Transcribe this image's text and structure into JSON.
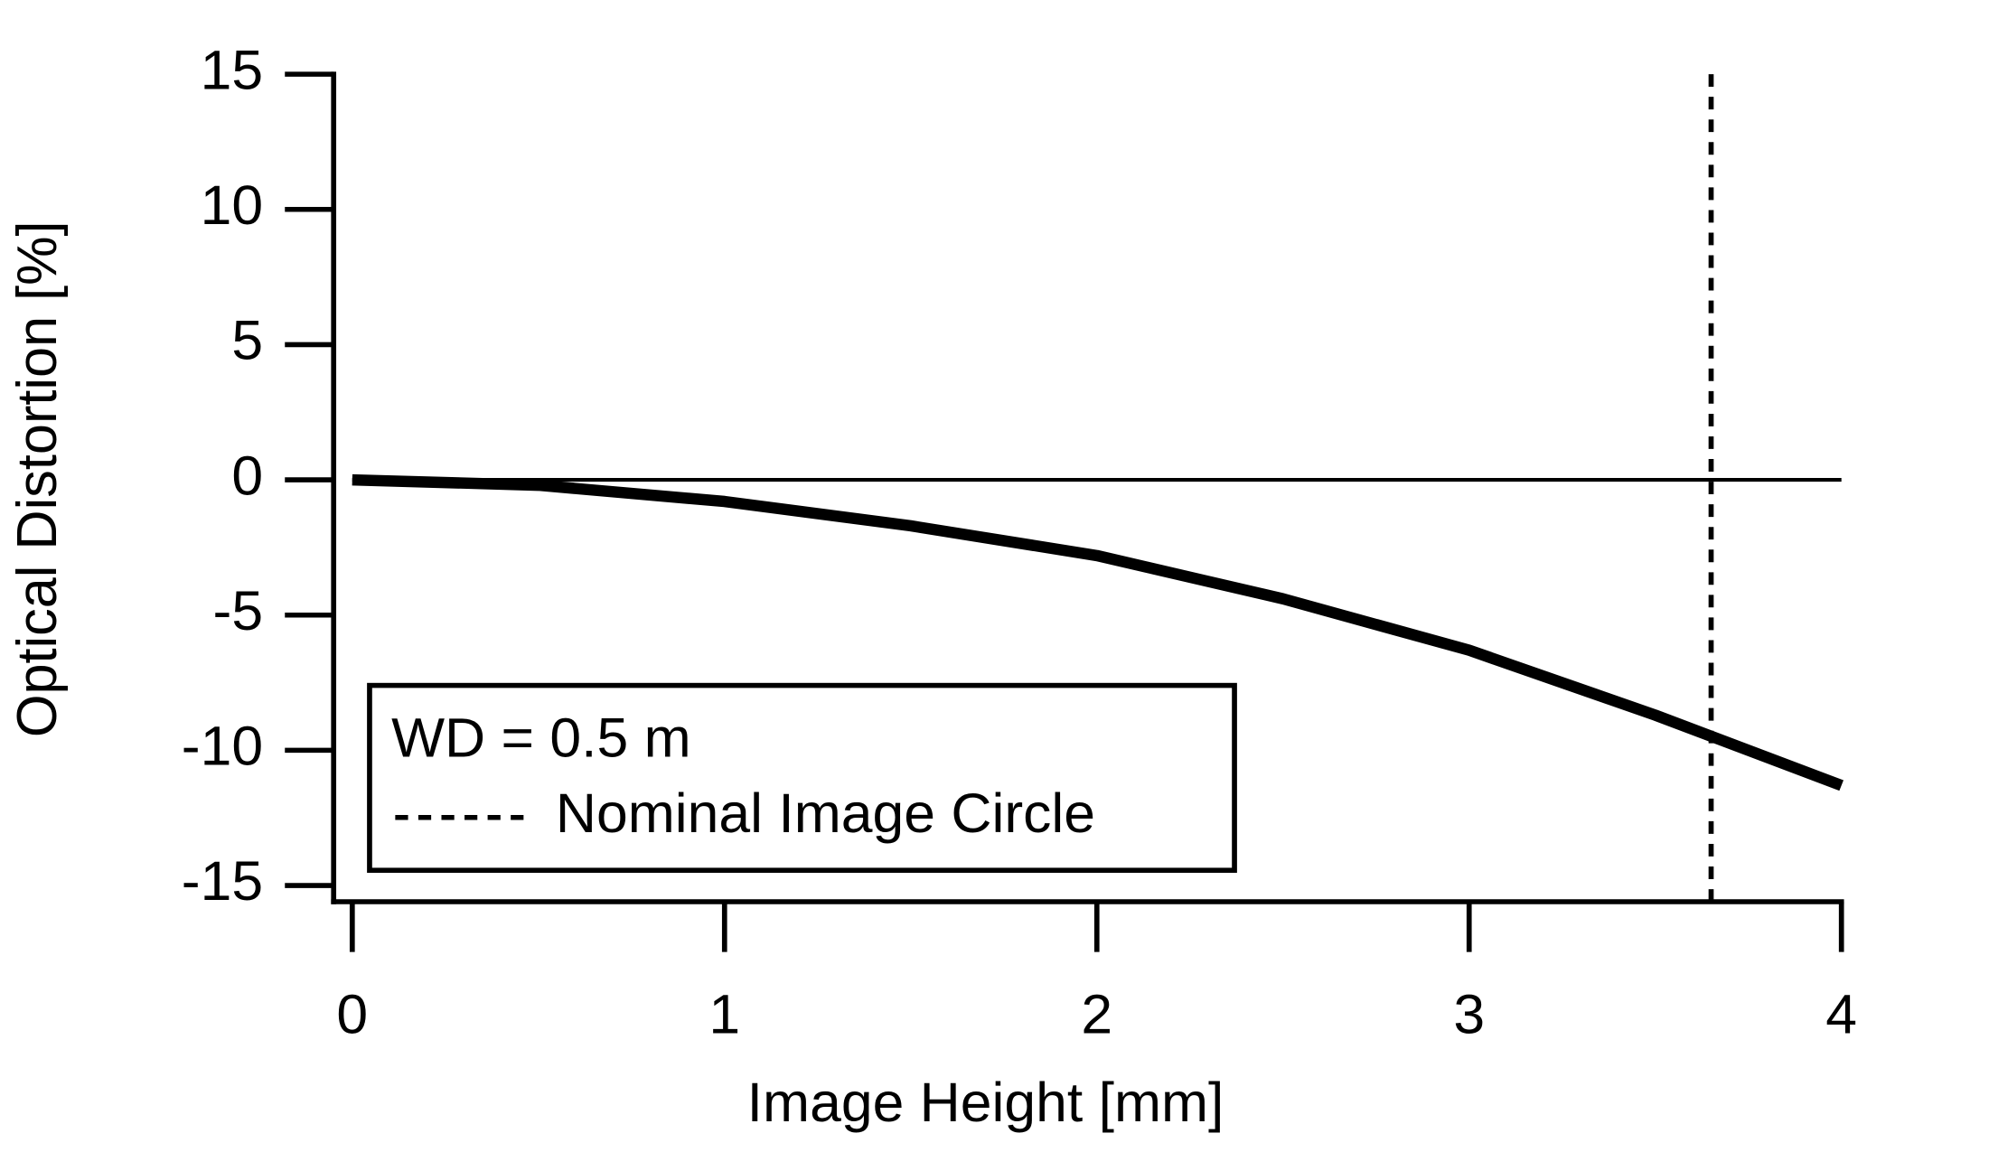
{
  "chart_data": {
    "type": "line",
    "x_label": "Image Height [mm]",
    "y_label": "Optical Distortion [%]",
    "legend_title": "WD = 0.5 m",
    "x": [
      0,
      0.5,
      1,
      1.5,
      2,
      2.5,
      3,
      3.5,
      4
    ],
    "series": [
      {
        "color": "#000000",
        "values": [
          0,
          -0.2,
          -0.8,
          -1.7,
          -2.8,
          -4.4,
          -6.3,
          -8.7,
          -11.3
        ]
      }
    ],
    "reference_line": {
      "name": "Nominal Image Circle",
      "x": 3.65
    },
    "zero_line": 0,
    "xlim": [
      -0.05,
      4
    ],
    "xticks": [
      0,
      1,
      2,
      3,
      4
    ],
    "ylim": [
      -15.6,
      15
    ],
    "yticks": [
      -15,
      -10,
      -5,
      0,
      5,
      10,
      15
    ]
  }
}
